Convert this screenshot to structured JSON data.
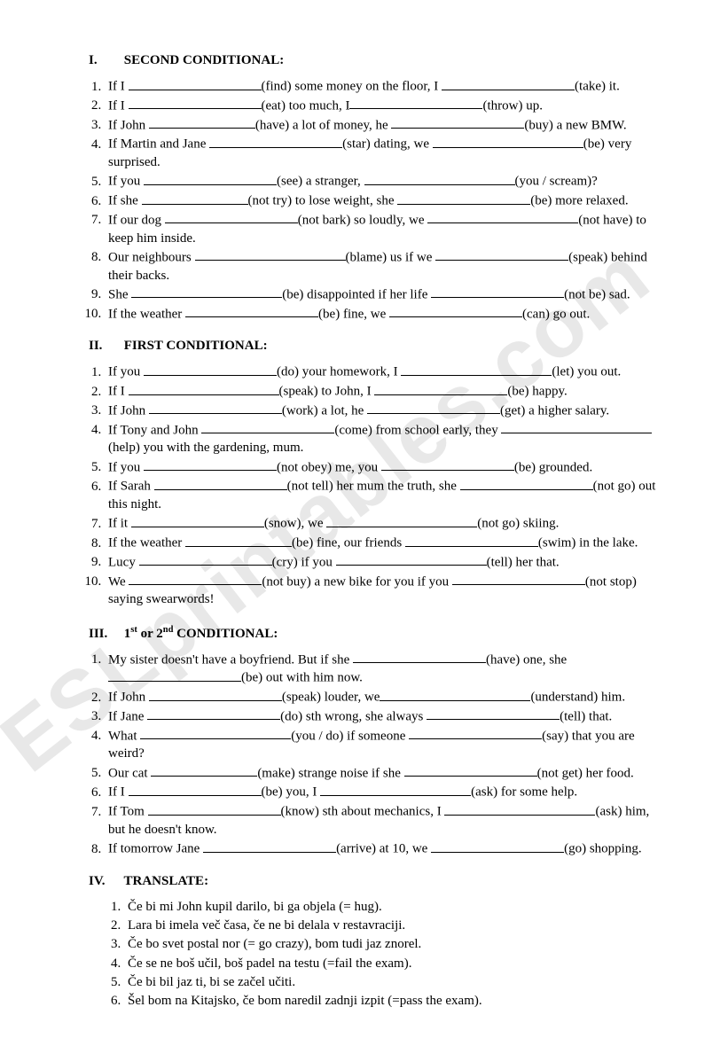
{
  "watermark_text": "ESLprintables.com",
  "sections": {
    "s1": {
      "roman": "I.",
      "title": "SECOND CONDITIONAL:"
    },
    "s2": {
      "roman": "II.",
      "title": "FIRST CONDITIONAL:"
    },
    "s3": {
      "roman": "III.",
      "title_html": "1st or 2nd CONDITIONAL:"
    },
    "s4": {
      "roman": "IV.",
      "title": "TRANSLATE:"
    }
  },
  "ex1": [
    {
      "p1": "If I ",
      "v1": "(find) some money on the floor, I ",
      "v2": "(take) it."
    },
    {
      "p1": "If I ",
      "v1": "(eat) too much, I",
      "v2": "(throw) up."
    },
    {
      "p1": "If John ",
      "v1": "(have) a lot of money, he ",
      "v2": "(buy) a new BMW."
    },
    {
      "p1": "If Martin and Jane ",
      "v1": "(star) dating, we ",
      "v2": "(be) very surprised."
    },
    {
      "p1": "If you ",
      "v1": "(see) a stranger, ",
      "v2": "(you / scream)?"
    },
    {
      "p1": "If she ",
      "v1": "(not try) to lose weight, she ",
      "v2": "(be) more relaxed."
    },
    {
      "p1": "If our dog ",
      "v1": "(not bark) so loudly, we ",
      "v2": "(not have) to keep him inside."
    },
    {
      "p1": "Our neighbours ",
      "v1": "(blame) us if we ",
      "v2": "(speak) behind their backs."
    },
    {
      "p1": "She ",
      "v1": "(be) disappointed if her life ",
      "v2": "(not be) sad."
    },
    {
      "p1": "If the weather ",
      "v1": "(be) fine, we ",
      "v2": "(can) go out."
    }
  ],
  "ex2": [
    {
      "p1": "If you ",
      "v1": "(do) your homework, I ",
      "v2": "(let) you out."
    },
    {
      "p1": "If I ",
      "v1": "(speak) to John, I ",
      "v2": "(be) happy."
    },
    {
      "p1": "If John ",
      "v1": "(work) a lot, he ",
      "v2": "(get) a higher salary."
    },
    {
      "p1": "If Tony and John ",
      "v1": "(come) from school early, they ",
      "v2": "(help) you with the gardening, mum."
    },
    {
      "p1": "If you ",
      "v1": "(not obey) me, you ",
      "v2": "(be) grounded."
    },
    {
      "p1": "If Sarah ",
      "v1": "(not tell) her mum the truth, she ",
      "v2": "(not go) out this night."
    },
    {
      "p1": "If it ",
      "v1": "(snow), we ",
      "v2": "(not go) skiing."
    },
    {
      "p1": "If the weather ",
      "v1": "(be) fine, our friends ",
      "v2": "(swim) in the lake."
    },
    {
      "p1": "Lucy ",
      "v1": "(cry) if you ",
      "v2": "(tell) her that."
    },
    {
      "p1": "We ",
      "v1": "(not buy) a new bike for you if you ",
      "v2": "(not stop) saying swearwords!"
    }
  ],
  "ex3": [
    {
      "p1": "My sister doesn't have a boyfriend. But if she ",
      "v1": "(have) one, she ",
      "v2": "(be) out with him now."
    },
    {
      "p1": "If John ",
      "v1": "(speak) louder, we",
      "v2": "(understand) him."
    },
    {
      "p1": "If Jane ",
      "v1": "(do) sth wrong, she always ",
      "v2": "(tell) that."
    },
    {
      "p1": "What ",
      "v1": "(you / do) if someone ",
      "v2": "(say) that you are weird?"
    },
    {
      "p1": "Our cat ",
      "v1": "(make) strange noise if she ",
      "v2": "(not get) her food."
    },
    {
      "p1": "If I ",
      "v1": "(be) you, I ",
      "v2": "(ask) for some help."
    },
    {
      "p1": "If Tom ",
      "v1": "(know) sth about mechanics, I ",
      "v2": "(ask) him, but he doesn't know."
    },
    {
      "p1": "If tomorrow Jane ",
      "v1": "(arrive) at 10, we ",
      "v2": "(go) shopping."
    }
  ],
  "ex4": [
    "Če bi mi John kupil darilo, bi ga objela (= hug).",
    "Lara bi imela več časa, če ne bi delala v restavraciji.",
    "Če bo svet postal nor (= go crazy), bom tudi jaz znorel.",
    "Če se ne boš učil, boš padel na testu (=fail the exam).",
    "Če bi bil jaz ti, bi se začel učiti.",
    "Šel bom na Kitajsko, če bom naredil zadnji izpit (=pass the exam)."
  ]
}
